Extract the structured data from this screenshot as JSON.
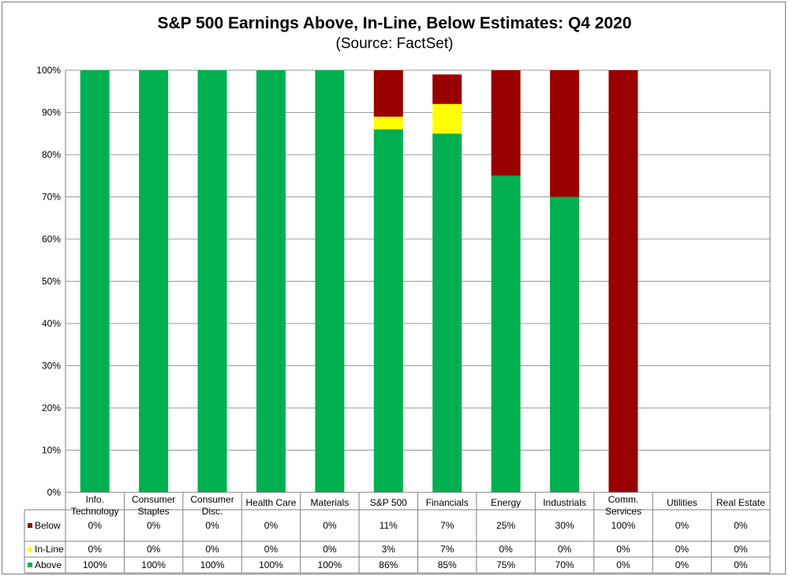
{
  "chart_data": {
    "type": "bar",
    "stacked": true,
    "title": "S&P 500 Earnings Above, In-Line, Below Estimates: Q4 2020",
    "subtitle": "(Source: FactSet)",
    "categories": [
      [
        "Info.",
        "Technology"
      ],
      [
        "Consumer",
        "Staples"
      ],
      [
        "Consumer",
        "Disc."
      ],
      [
        "Health Care"
      ],
      [
        "Materials"
      ],
      [
        "S&P 500"
      ],
      [
        "Financials"
      ],
      [
        "Energy"
      ],
      [
        "Industrials"
      ],
      [
        "Comm.",
        "Services"
      ],
      [
        "Utilities"
      ],
      [
        "Real Estate"
      ]
    ],
    "series": [
      {
        "name": "Below",
        "color": "#990000",
        "values": [
          0,
          0,
          0,
          0,
          0,
          11,
          7,
          25,
          30,
          100,
          0,
          0
        ],
        "labels": [
          "0%",
          "0%",
          "0%",
          "0%",
          "0%",
          "11%",
          "7%",
          "25%",
          "30%",
          "100%",
          "0%",
          "0%"
        ]
      },
      {
        "name": "In-Line",
        "color": "#ffff00",
        "values": [
          0,
          0,
          0,
          0,
          0,
          3,
          7,
          0,
          0,
          0,
          0,
          0
        ],
        "labels": [
          "0%",
          "0%",
          "0%",
          "0%",
          "0%",
          "3%",
          "7%",
          "0%",
          "0%",
          "0%",
          "0%",
          "0%"
        ]
      },
      {
        "name": "Above",
        "color": "#00b050",
        "values": [
          100,
          100,
          100,
          100,
          100,
          86,
          85,
          75,
          70,
          0,
          0,
          0
        ],
        "labels": [
          "100%",
          "100%",
          "100%",
          "100%",
          "100%",
          "86%",
          "85%",
          "75%",
          "70%",
          "0%",
          "0%",
          "0%"
        ]
      }
    ],
    "stack_order_bottom_to_top": [
      "Above",
      "In-Line",
      "Below"
    ],
    "ylim": [
      0,
      100
    ],
    "yticks": [
      "0%",
      "10%",
      "20%",
      "30%",
      "40%",
      "50%",
      "60%",
      "70%",
      "80%",
      "90%",
      "100%"
    ],
    "grid": true,
    "legend_placement": "data-table"
  }
}
